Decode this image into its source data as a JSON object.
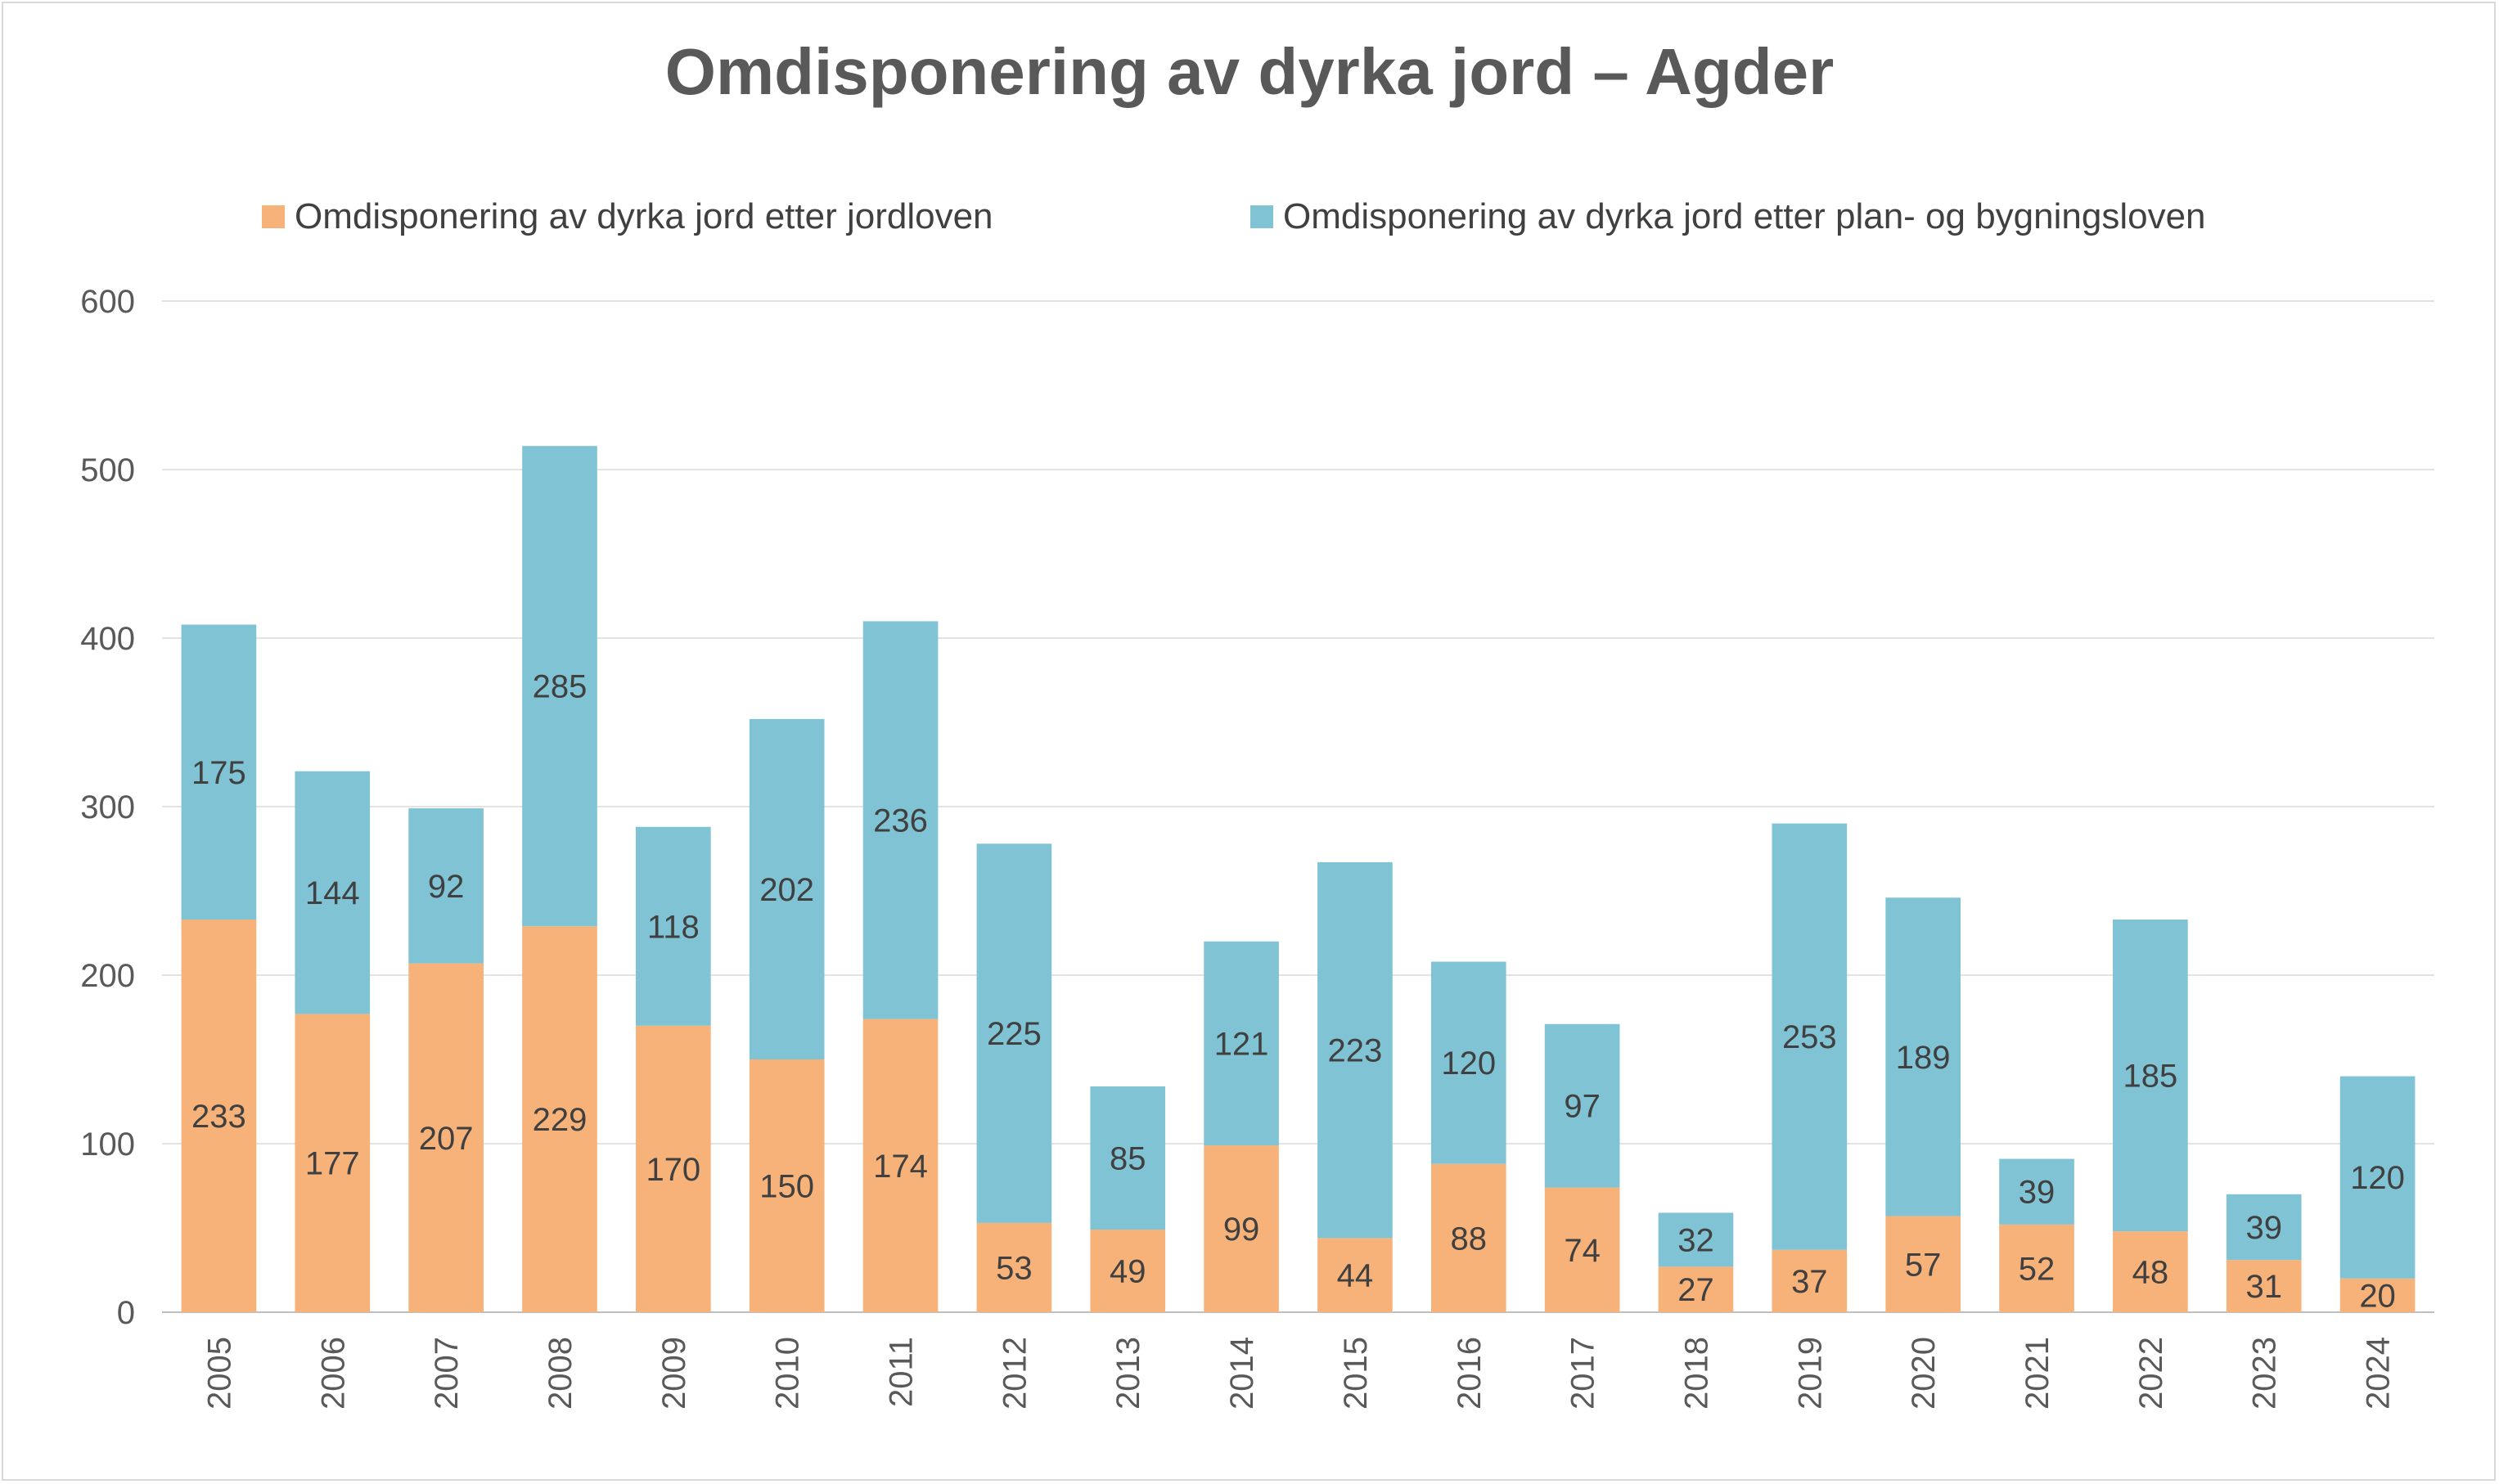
{
  "chart_data": {
    "type": "bar",
    "stacked": true,
    "title": "Omdisponering av dyrka jord – Agder",
    "xlabel": "",
    "ylabel": "",
    "ylim": [
      0,
      600
    ],
    "yticks": [
      0,
      100,
      200,
      300,
      400,
      500,
      600
    ],
    "grid": true,
    "legend_position": "top",
    "categories": [
      "2005",
      "2006",
      "2007",
      "2008",
      "2009",
      "2010",
      "2011",
      "2012",
      "2013",
      "2014",
      "2015",
      "2016",
      "2017",
      "2018",
      "2019",
      "2020",
      "2021",
      "2022",
      "2023",
      "2024"
    ],
    "series": [
      {
        "name": "Omdisponering av dyrka jord etter jordloven",
        "color": "#F7B27A",
        "values": [
          233,
          177,
          207,
          229,
          170,
          150,
          174,
          53,
          49,
          99,
          44,
          88,
          74,
          27,
          37,
          57,
          52,
          48,
          31,
          20
        ]
      },
      {
        "name": "Omdisponering av dyrka jord etter plan- og bygningsloven",
        "color": "#7FC3D4",
        "values": [
          175,
          144,
          92,
          285,
          118,
          202,
          236,
          225,
          85,
          121,
          223,
          120,
          97,
          32,
          253,
          189,
          39,
          185,
          39,
          120
        ]
      }
    ]
  }
}
